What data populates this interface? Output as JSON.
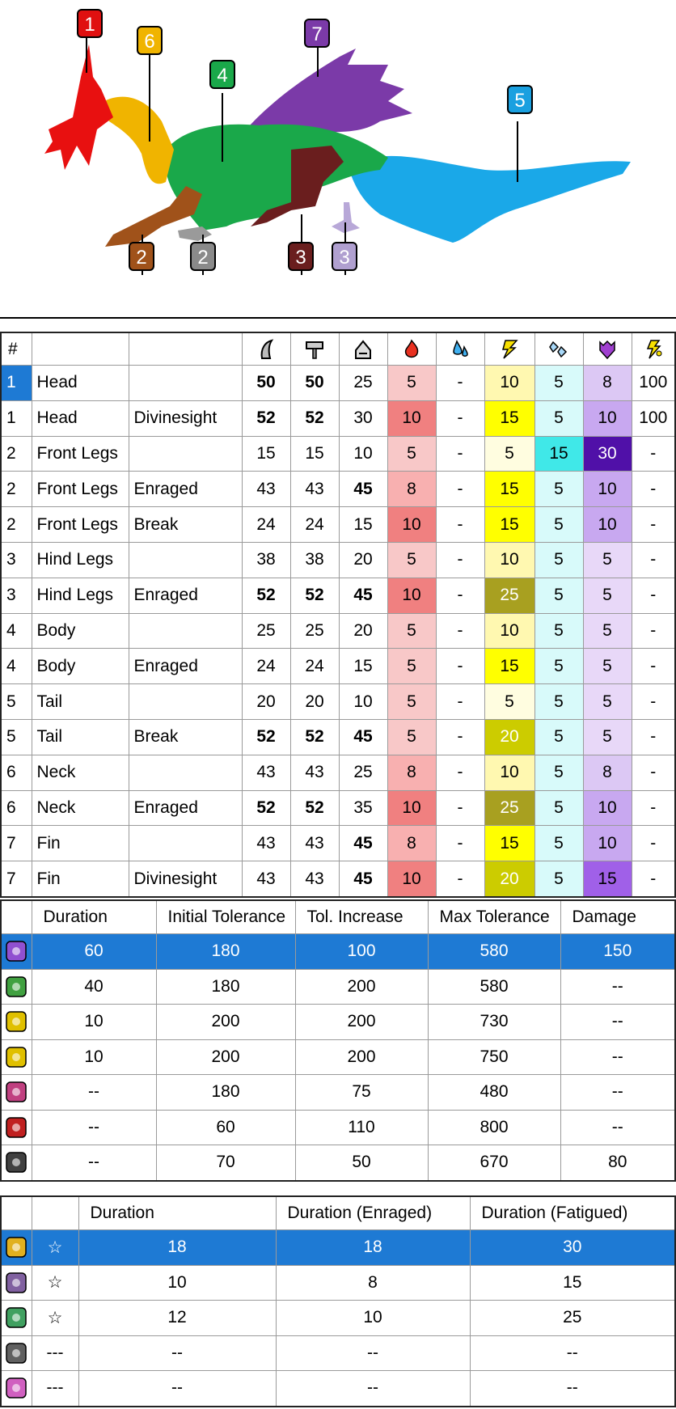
{
  "part_markers": [
    {
      "label": "1",
      "color": "#e01010"
    },
    {
      "label": "6",
      "color": "#f0b400"
    },
    {
      "label": "4",
      "color": "#1aa84a"
    },
    {
      "label": "7",
      "color": "#7b3aa8"
    },
    {
      "label": "5",
      "color": "#1aa0e0"
    },
    {
      "label": "2",
      "color": "#a0521a"
    },
    {
      "label": "2",
      "color": "#8a8a8a"
    },
    {
      "label": "3",
      "color": "#6a1e1e"
    },
    {
      "label": "3",
      "color": "#b0a0d0"
    }
  ],
  "hitzones": {
    "header": {
      "num": "#",
      "icons": [
        "cut-icon",
        "impact-icon",
        "shot-icon",
        "fire-icon",
        "water-icon",
        "thunder-icon",
        "ice-icon",
        "dragon-icon",
        "stun-icon"
      ]
    },
    "rows": [
      {
        "num": "1",
        "part": "Head",
        "state": "",
        "cut": "50",
        "impact": "50",
        "shot": "25",
        "fire": "5",
        "water": "-",
        "thunder": "10",
        "ice": "5",
        "dragon": "8",
        "stun": "100",
        "bold": [
          true,
          true,
          false
        ]
      },
      {
        "num": "1",
        "part": "Head",
        "state": "Divinesight",
        "cut": "52",
        "impact": "52",
        "shot": "30",
        "fire": "10",
        "water": "-",
        "thunder": "15",
        "ice": "5",
        "dragon": "10",
        "stun": "100",
        "bold": [
          true,
          true,
          false
        ]
      },
      {
        "num": "2",
        "part": "Front Legs",
        "state": "",
        "cut": "15",
        "impact": "15",
        "shot": "10",
        "fire": "5",
        "water": "-",
        "thunder": "5",
        "ice": "15",
        "dragon": "30",
        "stun": "-",
        "bold": [
          false,
          false,
          false
        ]
      },
      {
        "num": "2",
        "part": "Front Legs",
        "state": "Enraged",
        "cut": "43",
        "impact": "43",
        "shot": "45",
        "fire": "8",
        "water": "-",
        "thunder": "15",
        "ice": "5",
        "dragon": "10",
        "stun": "-",
        "bold": [
          false,
          false,
          true
        ]
      },
      {
        "num": "2",
        "part": "Front Legs",
        "state": "Break",
        "cut": "24",
        "impact": "24",
        "shot": "15",
        "fire": "10",
        "water": "-",
        "thunder": "15",
        "ice": "5",
        "dragon": "10",
        "stun": "-",
        "bold": [
          false,
          false,
          false
        ]
      },
      {
        "num": "3",
        "part": "Hind Legs",
        "state": "",
        "cut": "38",
        "impact": "38",
        "shot": "20",
        "fire": "5",
        "water": "-",
        "thunder": "10",
        "ice": "5",
        "dragon": "5",
        "stun": "-",
        "bold": [
          false,
          false,
          false
        ]
      },
      {
        "num": "3",
        "part": "Hind Legs",
        "state": "Enraged",
        "cut": "52",
        "impact": "52",
        "shot": "45",
        "fire": "10",
        "water": "-",
        "thunder": "25",
        "ice": "5",
        "dragon": "5",
        "stun": "-",
        "bold": [
          true,
          true,
          true
        ]
      },
      {
        "num": "4",
        "part": "Body",
        "state": "",
        "cut": "25",
        "impact": "25",
        "shot": "20",
        "fire": "5",
        "water": "-",
        "thunder": "10",
        "ice": "5",
        "dragon": "5",
        "stun": "-",
        "bold": [
          false,
          false,
          false
        ]
      },
      {
        "num": "4",
        "part": "Body",
        "state": "Enraged",
        "cut": "24",
        "impact": "24",
        "shot": "15",
        "fire": "5",
        "water": "-",
        "thunder": "15",
        "ice": "5",
        "dragon": "5",
        "stun": "-",
        "bold": [
          false,
          false,
          false
        ]
      },
      {
        "num": "5",
        "part": "Tail",
        "state": "",
        "cut": "20",
        "impact": "20",
        "shot": "10",
        "fire": "5",
        "water": "-",
        "thunder": "5",
        "ice": "5",
        "dragon": "5",
        "stun": "-",
        "bold": [
          false,
          false,
          false
        ]
      },
      {
        "num": "5",
        "part": "Tail",
        "state": "Break",
        "cut": "52",
        "impact": "52",
        "shot": "45",
        "fire": "5",
        "water": "-",
        "thunder": "20",
        "ice": "5",
        "dragon": "5",
        "stun": "-",
        "bold": [
          true,
          true,
          true
        ]
      },
      {
        "num": "6",
        "part": "Neck",
        "state": "",
        "cut": "43",
        "impact": "43",
        "shot": "25",
        "fire": "8",
        "water": "-",
        "thunder": "10",
        "ice": "5",
        "dragon": "8",
        "stun": "-",
        "bold": [
          false,
          false,
          false
        ]
      },
      {
        "num": "6",
        "part": "Neck",
        "state": "Enraged",
        "cut": "52",
        "impact": "52",
        "shot": "35",
        "fire": "10",
        "water": "-",
        "thunder": "25",
        "ice": "5",
        "dragon": "10",
        "stun": "-",
        "bold": [
          true,
          true,
          false
        ]
      },
      {
        "num": "7",
        "part": "Fin",
        "state": "",
        "cut": "43",
        "impact": "43",
        "shot": "45",
        "fire": "8",
        "water": "-",
        "thunder": "15",
        "ice": "5",
        "dragon": "10",
        "stun": "-",
        "bold": [
          false,
          false,
          true
        ]
      },
      {
        "num": "7",
        "part": "Fin",
        "state": "Divinesight",
        "cut": "43",
        "impact": "43",
        "shot": "45",
        "fire": "10",
        "water": "-",
        "thunder": "20",
        "ice": "5",
        "dragon": "15",
        "stun": "-",
        "bold": [
          false,
          false,
          true
        ]
      }
    ],
    "colors": {
      "fire": {
        "5": "#f8c8c8",
        "8": "#f8b0b0",
        "10": "#f08080"
      },
      "thunder": {
        "5": "#fffde0",
        "10": "#fff8b0",
        "15": "#ffff00",
        "20": "#cccc00",
        "25": "#a8a020"
      },
      "ice": {
        "5": "#d8fafa",
        "15": "#40e8e8"
      },
      "dragon": {
        "5": "#e8d8f8",
        "8": "#dcc8f4",
        "10": "#c8a8f0",
        "15": "#a060e8",
        "30": "#5010a8"
      }
    }
  },
  "ailments": {
    "headers": [
      "Duration",
      "Initial Tolerance",
      "Tol. Increase",
      "Max Tolerance",
      "Damage"
    ],
    "rows": [
      {
        "icon": "poison-icon",
        "color": "#9050d0",
        "cells": [
          "60",
          "180",
          "100",
          "580",
          "150"
        ],
        "selected": true
      },
      {
        "icon": "sleep-icon",
        "color": "#40a040",
        "cells": [
          "40",
          "180",
          "200",
          "580",
          "--"
        ],
        "selected": false
      },
      {
        "icon": "paralysis-icon",
        "color": "#e0c000",
        "cells": [
          "10",
          "200",
          "200",
          "730",
          "--"
        ],
        "selected": false
      },
      {
        "icon": "stun-icon",
        "color": "#e0c000",
        "cells": [
          "10",
          "200",
          "200",
          "750",
          "--"
        ],
        "selected": false
      },
      {
        "icon": "exhaust-icon",
        "color": "#c04080",
        "cells": [
          "--",
          "180",
          "75",
          "480",
          "--"
        ],
        "selected": false
      },
      {
        "icon": "mount-icon",
        "color": "#c02020",
        "cells": [
          "--",
          "60",
          "110",
          "800",
          "--"
        ],
        "selected": false
      },
      {
        "icon": "blast-icon",
        "color": "#404040",
        "cells": [
          "--",
          "70",
          "50",
          "670",
          "80"
        ],
        "selected": false
      }
    ]
  },
  "traps": {
    "headers": [
      "Duration",
      "Duration (Enraged)",
      "Duration (Fatigued)"
    ],
    "rows": [
      {
        "icon": "flash-icon",
        "color": "#e0b020",
        "star": "☆",
        "cells": [
          "18",
          "18",
          "30"
        ],
        "selected": true
      },
      {
        "icon": "shock-trap-icon",
        "color": "#8060a0",
        "star": "☆",
        "cells": [
          "10",
          "8",
          "15"
        ],
        "selected": false
      },
      {
        "icon": "pitfall-trap-icon",
        "color": "#40a060",
        "star": "☆",
        "cells": [
          "12",
          "10",
          "25"
        ],
        "selected": false
      },
      {
        "icon": "sonic-icon",
        "color": "#606060",
        "star": "---",
        "cells": [
          "--",
          "--",
          "--"
        ],
        "selected": false
      },
      {
        "icon": "dung-icon",
        "color": "#d060c0",
        "star": "---",
        "cells": [
          "--",
          "--",
          "--"
        ],
        "selected": false
      }
    ]
  }
}
